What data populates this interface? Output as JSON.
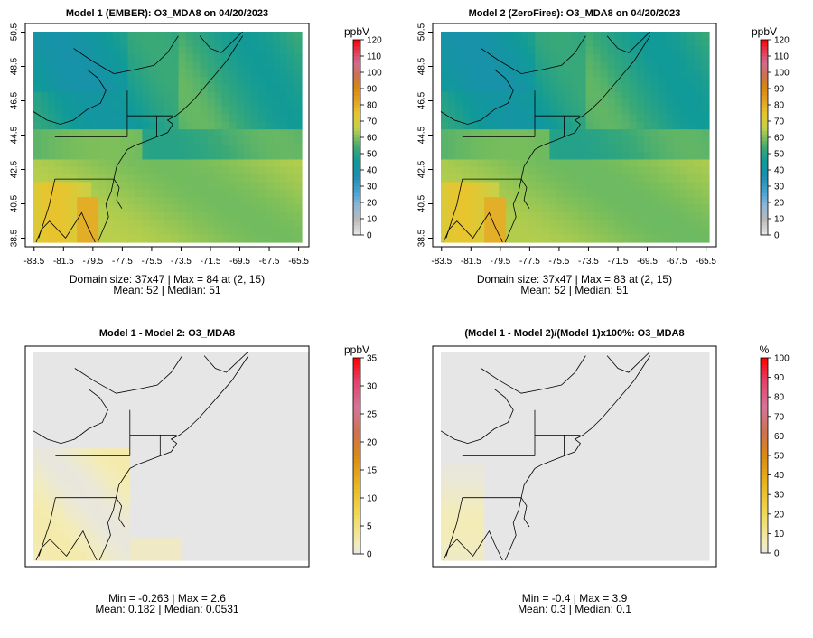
{
  "chart_data": [
    {
      "type": "heatmap",
      "title": "Model 1 (EMBER): O3_MDA8 on 04/20/2023",
      "legend_title": "ppbV",
      "legend_ticks": [
        0,
        10,
        20,
        30,
        40,
        50,
        60,
        70,
        80,
        90,
        100,
        110,
        120
      ],
      "legend_range": [
        0,
        120
      ],
      "palette": "ozone",
      "x_ticks": [
        "-83.5",
        "-81.5",
        "-79.5",
        "-77.5",
        "-75.5",
        "-73.5",
        "-71.5",
        "-69.5",
        "-67.5",
        "-65.5"
      ],
      "y_ticks": [
        "38.5",
        "40.5",
        "42.5",
        "44.5",
        "46.5",
        "48.5",
        "50.5"
      ],
      "xlim": [
        -84.1,
        -64.8
      ],
      "ylim": [
        38.0,
        51.0
      ],
      "field": "abs1",
      "caption_1": "Domain size: 37x47 | Max = 84 at (2, 15)",
      "caption_2": "Mean: 52 |  Median: 51"
    },
    {
      "type": "heatmap",
      "title": "Model 2 (ZeroFires): O3_MDA8 on 04/20/2023",
      "legend_title": "ppbV",
      "legend_ticks": [
        0,
        10,
        20,
        30,
        40,
        50,
        60,
        70,
        80,
        90,
        100,
        110,
        120
      ],
      "legend_range": [
        0,
        120
      ],
      "palette": "ozone",
      "x_ticks": [
        "-83.5",
        "-81.5",
        "-79.5",
        "-77.5",
        "-75.5",
        "-73.5",
        "-71.5",
        "-69.5",
        "-67.5",
        "-65.5"
      ],
      "y_ticks": [
        "38.5",
        "40.5",
        "42.5",
        "44.5",
        "46.5",
        "48.5",
        "50.5"
      ],
      "xlim": [
        -84.1,
        -64.8
      ],
      "ylim": [
        38.0,
        51.0
      ],
      "field": "abs2",
      "caption_1": "Domain size: 37x47 | Max = 83 at (2, 15)",
      "caption_2": "Mean: 52 |  Median: 51"
    },
    {
      "type": "heatmap",
      "title": "Model 1 - Model 2: O3_MDA8",
      "legend_title": "ppbV",
      "legend_ticks": [
        0,
        5,
        10,
        15,
        20,
        25,
        30,
        35
      ],
      "legend_range": [
        0,
        35
      ],
      "palette": "diff",
      "x_ticks": [],
      "y_ticks": [],
      "xlim": [
        -84.1,
        -64.8
      ],
      "ylim": [
        38.0,
        51.0
      ],
      "field": "diff",
      "caption_1": "Min = -0.263 | Max = 2.6",
      "caption_2": "Mean: 0.182 |  Median: 0.0531"
    },
    {
      "type": "heatmap",
      "title": "(Model 1 - Model 2)/(Model 1)x100%: O3_MDA8",
      "legend_title": "%",
      "legend_ticks": [
        0,
        10,
        20,
        30,
        40,
        50,
        60,
        70,
        80,
        90,
        100
      ],
      "legend_range": [
        0,
        100
      ],
      "palette": "diff",
      "x_ticks": [],
      "y_ticks": [],
      "xlim": [
        -84.1,
        -64.8
      ],
      "ylim": [
        38.0,
        51.0
      ],
      "field": "pct",
      "caption_1": "Min = -0.4 | Max = 3.9",
      "caption_2": "Mean: 0.3 |  Median: 0.1"
    }
  ]
}
